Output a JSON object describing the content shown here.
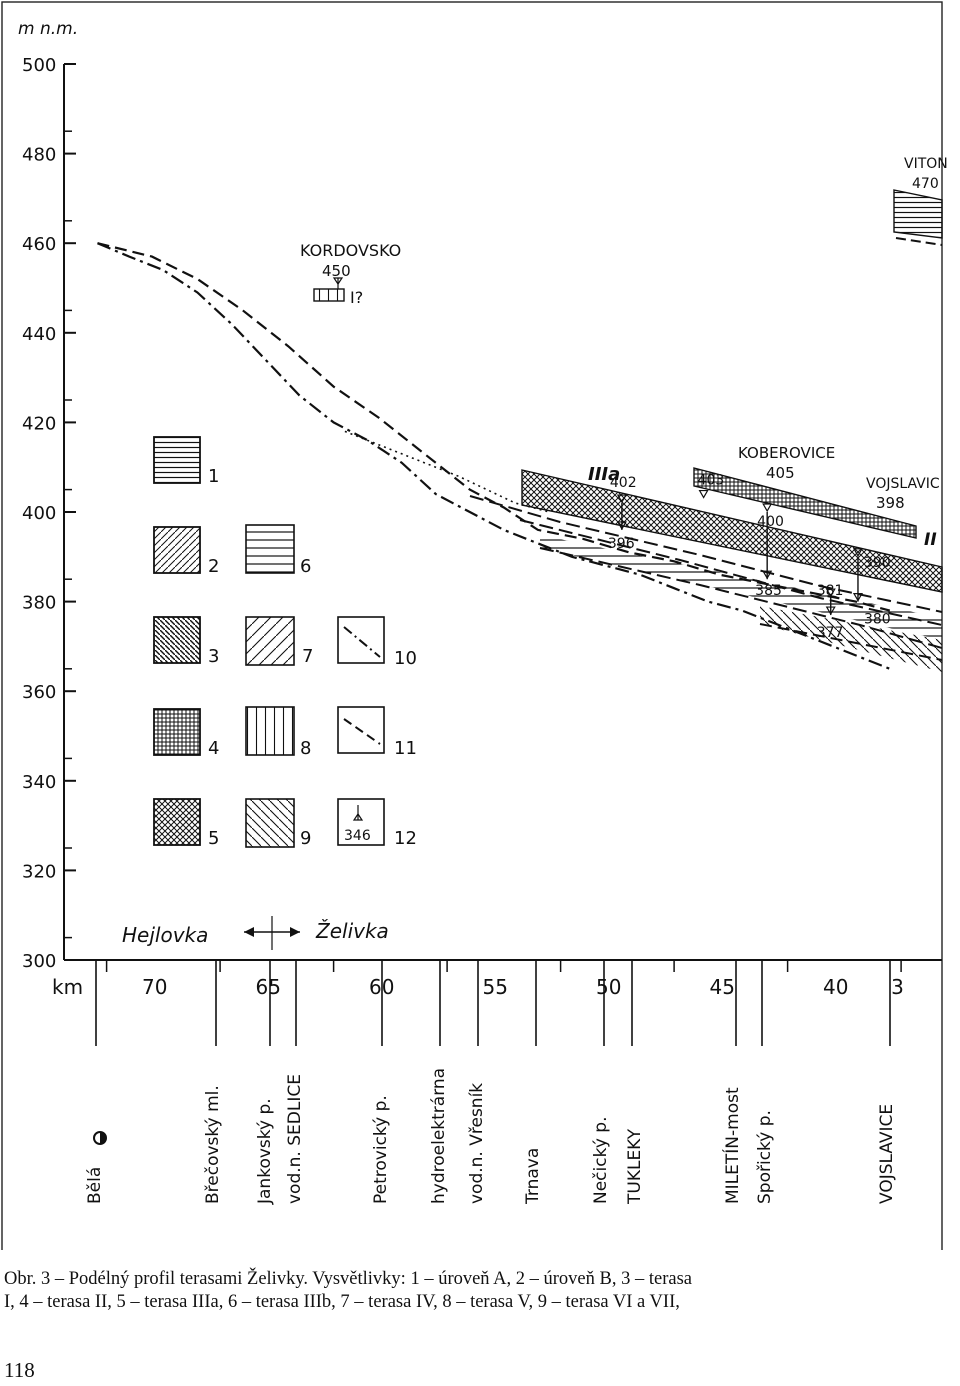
{
  "chart_data": {
    "type": "line",
    "title": "Podélný profil terasami Želivky",
    "ylabel": "m n.m.",
    "xlabel": "km",
    "ylim": [
      300,
      500
    ],
    "xlim": [
      73,
      37
    ],
    "y_ticks": [
      "300",
      "320",
      "340",
      "360",
      "380",
      "400",
      "420",
      "440",
      "460",
      "480",
      "500"
    ],
    "x_ticks": [
      "70",
      "65",
      "60",
      "55",
      "50",
      "45",
      "40",
      "3"
    ],
    "rivers": {
      "left": "Hejlovka",
      "right": "Želivka"
    },
    "localities": [
      {
        "name": "KORDOVSKO",
        "value": "450",
        "terrace": "I?"
      },
      {
        "name": "KOBEROVICE",
        "value": "405"
      },
      {
        "name": "VOJSLAVIC",
        "value": "398"
      },
      {
        "name": "VITON",
        "value": "470"
      }
    ],
    "terrace_labels": [
      "IIIa",
      "II"
    ],
    "elevation_marks": [
      {
        "km": 49.3,
        "value": "402"
      },
      {
        "km": 49.3,
        "value": "396"
      },
      {
        "km": 45.7,
        "value": "403"
      },
      {
        "km": 42.9,
        "value": "400"
      },
      {
        "km": 42.9,
        "value": "385"
      },
      {
        "km": 40.1,
        "value": "381"
      },
      {
        "km": 40.1,
        "value": "377"
      },
      {
        "km": 38.9,
        "value": "390"
      },
      {
        "km": 38.9,
        "value": "380"
      }
    ],
    "series": [
      {
        "name": "10 (dash-dot profile)",
        "x": [
          72.4,
          71.0,
          69.5,
          68.0,
          66.5,
          65.0,
          63.5,
          62.0,
          60.5,
          59.0,
          57.5,
          56.0,
          54.5,
          53.0,
          51.5,
          50.0,
          48.5,
          47.0,
          45.5,
          44.0,
          42.5,
          41.0,
          39.5,
          37.5
        ],
        "y": [
          460,
          457,
          454,
          449,
          442,
          434,
          426,
          420,
          416,
          411,
          404,
          400,
          396,
          393,
          390,
          388,
          386,
          383,
          380,
          378,
          375,
          372,
          369,
          365
        ]
      },
      {
        "name": "11 (dashed profile)",
        "x": [
          72.4,
          70.0,
          68.0,
          66.0,
          64.0,
          62.0,
          60.0,
          58.0,
          56.0,
          54.5,
          53.0,
          51.0,
          49.0,
          47.0,
          45.0,
          43.0,
          41.0,
          39.0,
          37.5
        ],
        "y": [
          460,
          457,
          452,
          445,
          437,
          428,
          421,
          413,
          405,
          401,
          396,
          394,
          391,
          389,
          386,
          384,
          382,
          380,
          378
        ]
      },
      {
        "name": "dotted profile",
        "x": [
          61.5,
          59.0,
          56.5,
          54.0,
          52.5
        ],
        "y": [
          418,
          413,
          408,
          402,
          400
        ]
      }
    ],
    "legend": [
      {
        "n": "1",
        "label": "úroveň A"
      },
      {
        "n": "2",
        "label": "úroveň B"
      },
      {
        "n": "3",
        "label": "terasa I"
      },
      {
        "n": "4",
        "label": "terasa II"
      },
      {
        "n": "5",
        "label": "terasa IIIa"
      },
      {
        "n": "6",
        "label": "terasa IIIb"
      },
      {
        "n": "7",
        "label": "terasa IV"
      },
      {
        "n": "8",
        "label": "terasa V"
      },
      {
        "n": "9",
        "label": "terasa VI a VII"
      },
      {
        "n": "10",
        "label": ""
      },
      {
        "n": "11",
        "label": ""
      },
      {
        "n": "12",
        "label": "",
        "sample": "346"
      }
    ],
    "bottom_labels": [
      {
        "text": "Bělá"
      },
      {
        "text": "Břečovský ml."
      },
      {
        "text": "Jankovský p."
      },
      {
        "text": "vod.n. SEDLICE"
      },
      {
        "text": "Petrovický p."
      },
      {
        "text": "hydroelektrárna"
      },
      {
        "text": "vod.n. Vřesník"
      },
      {
        "text": "Trnava"
      },
      {
        "text": "Nečický p."
      },
      {
        "text": "TUKLEKY"
      },
      {
        "text": "MILETÍN-most"
      },
      {
        "text": "Spořický p."
      },
      {
        "text": "VOJSLAVICE"
      }
    ]
  },
  "caption": {
    "line1": "Obr. 3 – Podélný profil terasami Želivky. Vysvětlivky: 1 – úroveň A, 2 – úroveň B, 3 – terasa",
    "line2": "I, 4 – terasa II, 5 – terasa IIIa, 6 – terasa IIIb, 7 – terasa IV, 8 – terasa V, 9 – terasa VI a VII,"
  },
  "page_number": "118"
}
